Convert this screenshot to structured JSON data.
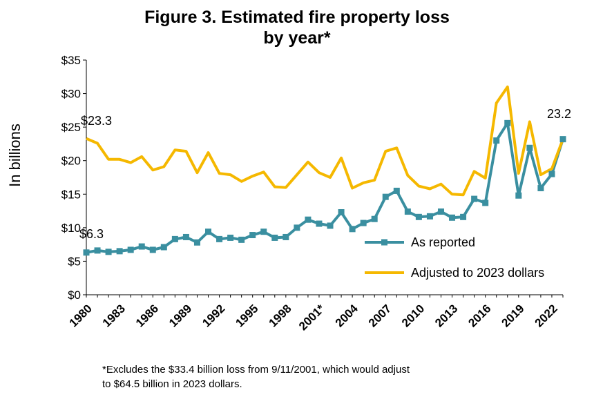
{
  "chart_data": {
    "type": "line",
    "title_line1": "Figure 3. Estimated fire property loss",
    "title_line2": "by year*",
    "ylabel": "In billions",
    "ylim": [
      0,
      35
    ],
    "y_ticks": [
      "$0",
      "$5",
      "$10",
      "$15",
      "$20",
      "$25",
      "$30",
      "$35"
    ],
    "x_tick_labels": [
      "1980",
      "1983",
      "1986",
      "1989",
      "1992",
      "1995",
      "1998",
      "2001*",
      "2004",
      "2007",
      "2010",
      "2013",
      "2016",
      "2019",
      "2022"
    ],
    "x": [
      1980,
      1981,
      1982,
      1983,
      1984,
      1985,
      1986,
      1987,
      1988,
      1989,
      1990,
      1991,
      1992,
      1993,
      1994,
      1995,
      1996,
      1997,
      1998,
      1999,
      2000,
      2001,
      2002,
      2003,
      2004,
      2005,
      2006,
      2007,
      2008,
      2009,
      2010,
      2011,
      2012,
      2013,
      2014,
      2015,
      2016,
      2017,
      2018,
      2019,
      2020,
      2021,
      2022,
      2023
    ],
    "series": [
      {
        "name": "As reported",
        "color": "#3A8FA0",
        "marker": "square",
        "values": [
          6.3,
          6.6,
          6.4,
          6.5,
          6.7,
          7.2,
          6.7,
          7.1,
          8.3,
          8.6,
          7.8,
          9.4,
          8.3,
          8.5,
          8.2,
          8.9,
          9.4,
          8.5,
          8.6,
          10.0,
          11.2,
          10.6,
          10.3,
          12.3,
          9.8,
          10.7,
          11.3,
          14.6,
          15.5,
          12.4,
          11.6,
          11.7,
          12.4,
          11.5,
          11.6,
          14.3,
          13.7,
          23.0,
          25.6,
          14.8,
          21.9,
          15.9,
          18.0,
          23.2
        ]
      },
      {
        "name": "Adjusted to 2023 dollars",
        "color": "#F5B800",
        "marker": "none",
        "values": [
          23.3,
          22.6,
          20.2,
          20.2,
          19.7,
          20.6,
          18.6,
          19.1,
          21.6,
          21.4,
          18.2,
          21.2,
          18.1,
          17.9,
          16.9,
          17.7,
          18.3,
          16.1,
          16.0,
          17.9,
          19.8,
          18.2,
          17.5,
          20.4,
          15.9,
          16.7,
          17.1,
          21.4,
          21.9,
          17.8,
          16.2,
          15.8,
          16.5,
          15.0,
          14.9,
          18.4,
          17.4,
          28.6,
          31.0,
          18.1,
          25.8,
          17.9,
          18.8,
          23.2
        ]
      }
    ],
    "annotations": {
      "first_adjusted": "$23.3",
      "first_reported": "$6.3",
      "last_value": "23.2"
    },
    "legend_position": "bottom-right",
    "grid": false
  },
  "footnote_line1": "*Excludes the $33.4 billion loss from 9/11/2001, which would adjust",
  "footnote_line2": "to $64.5 billion in 2023 dollars."
}
